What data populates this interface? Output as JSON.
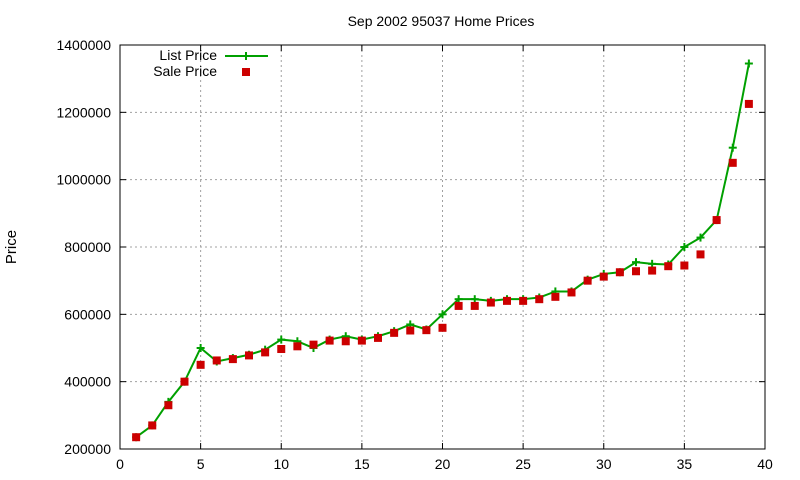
{
  "chart_data": {
    "type": "line",
    "title": "Sep 2002 95037 Home Prices",
    "xlabel": "",
    "ylabel": "Price",
    "xlim": [
      0,
      40
    ],
    "ylim": [
      200000,
      1400000
    ],
    "x_ticks": [
      0,
      5,
      10,
      15,
      20,
      25,
      30,
      35,
      40
    ],
    "y_ticks": [
      200000,
      400000,
      600000,
      800000,
      1000000,
      1200000,
      1400000
    ],
    "grid": true,
    "legend_position": "top-left",
    "x": [
      1,
      2,
      3,
      4,
      5,
      6,
      7,
      8,
      9,
      10,
      11,
      12,
      13,
      14,
      15,
      16,
      17,
      18,
      19,
      20,
      21,
      22,
      23,
      24,
      25,
      26,
      27,
      28,
      29,
      30,
      31,
      32,
      33,
      34,
      35,
      36,
      37,
      38,
      39
    ],
    "series": [
      {
        "name": "List Price",
        "style": "lines+cross-points",
        "color": "#00a000",
        "values": [
          235000,
          270000,
          340000,
          400000,
          500000,
          460000,
          470000,
          480000,
          495000,
          525000,
          520000,
          500000,
          525000,
          535000,
          525000,
          535000,
          550000,
          570000,
          555000,
          600000,
          645000,
          645000,
          640000,
          645000,
          645000,
          650000,
          668000,
          668000,
          703000,
          720000,
          725000,
          755000,
          750000,
          748000,
          800000,
          828000,
          880000,
          1095000,
          1345000
        ]
      },
      {
        "name": "Sale Price",
        "style": "square-points",
        "color": "#cc0000",
        "values": [
          235000,
          270000,
          330000,
          400000,
          450000,
          463000,
          467000,
          478000,
          487000,
          497000,
          505000,
          510000,
          522000,
          520000,
          522000,
          530000,
          545000,
          552000,
          553000,
          560000,
          625000,
          625000,
          635000,
          640000,
          640000,
          645000,
          652000,
          665000,
          700000,
          712000,
          725000,
          728000,
          730000,
          743000,
          745000,
          778000,
          880000,
          1050000,
          1225000
        ]
      }
    ]
  }
}
